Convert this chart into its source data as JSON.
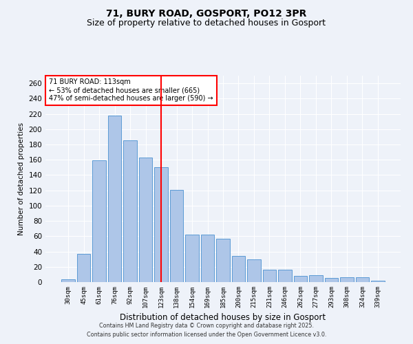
{
  "title": "71, BURY ROAD, GOSPORT, PO12 3PR",
  "subtitle": "Size of property relative to detached houses in Gosport",
  "xlabel": "Distribution of detached houses by size in Gosport",
  "ylabel": "Number of detached properties",
  "categories": [
    "30sqm",
    "45sqm",
    "61sqm",
    "76sqm",
    "92sqm",
    "107sqm",
    "123sqm",
    "138sqm",
    "154sqm",
    "169sqm",
    "185sqm",
    "200sqm",
    "215sqm",
    "231sqm",
    "246sqm",
    "262sqm",
    "277sqm",
    "293sqm",
    "308sqm",
    "324sqm",
    "339sqm"
  ],
  "values": [
    4,
    37,
    159,
    218,
    185,
    163,
    150,
    121,
    62,
    62,
    57,
    34,
    30,
    16,
    16,
    8,
    9,
    5,
    6,
    6,
    2
  ],
  "bar_color": "#aec6e8",
  "bar_edge_color": "#5b9bd5",
  "vline_x": 6.0,
  "vline_color": "red",
  "annotation_title": "71 BURY ROAD: 113sqm",
  "annotation_line2": "← 53% of detached houses are smaller (665)",
  "annotation_line3": "47% of semi-detached houses are larger (590) →",
  "annotation_box_color": "red",
  "ylim": [
    0,
    270
  ],
  "yticks": [
    0,
    20,
    40,
    60,
    80,
    100,
    120,
    140,
    160,
    180,
    200,
    220,
    240,
    260
  ],
  "footer_line1": "Contains HM Land Registry data © Crown copyright and database right 2025.",
  "footer_line2": "Contains public sector information licensed under the Open Government Licence v3.0.",
  "title_fontsize": 10,
  "subtitle_fontsize": 9,
  "background_color": "#eef2f9"
}
